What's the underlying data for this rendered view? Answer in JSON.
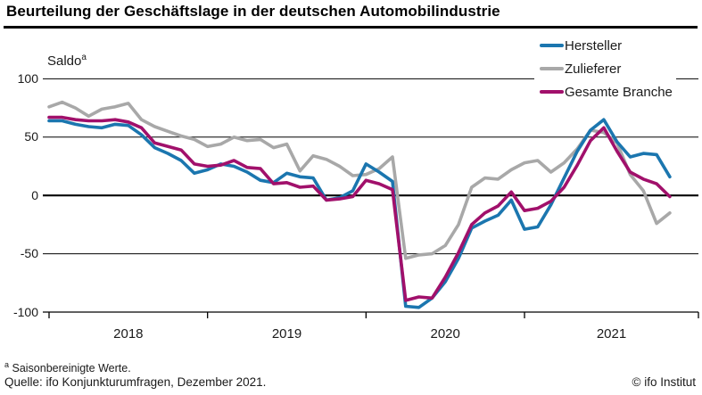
{
  "header": {
    "title": "Beurteilung der Geschäftslage in der deutschen Automobilindustrie"
  },
  "axis": {
    "saldo_label": "Saldo",
    "saldo_sup": "a"
  },
  "footnotes": {
    "note_sup": "a",
    "note_text": " Saisonbereinigte Werte.",
    "source": "Quelle: ifo Konjunkturumfragen, Dezember 2021.",
    "copyright": "© ifo Institut"
  },
  "chart_data": {
    "type": "line",
    "title": "Beurteilung der Geschäftslage in der deutschen Automobilindustrie",
    "unit": "Saldo, saisonbereinigte Werte",
    "x_range": [
      "2018-01",
      "2021-12"
    ],
    "months_per_year": 12,
    "x_tick_labels": [
      "2018",
      "2019",
      "2020",
      "2021"
    ],
    "ylim": [
      -100,
      100
    ],
    "yticks": [
      100,
      50,
      0,
      -50,
      -100
    ],
    "grid": "horizontal",
    "legend_position": "top-right",
    "zero_line": true,
    "series": [
      {
        "name": "Hersteller",
        "color": "#1b76af",
        "values": [
          64,
          64,
          61,
          59,
          58,
          61,
          60,
          52,
          41,
          36,
          30,
          19,
          22,
          27,
          25,
          20,
          13,
          11,
          19,
          16,
          15,
          -4,
          -2,
          4,
          27,
          20,
          12,
          -95,
          -96,
          -88,
          -74,
          -54,
          -28,
          -22,
          -17,
          -4,
          -29,
          -27,
          -8,
          15,
          38,
          56,
          65,
          46,
          33,
          36,
          35,
          16
        ]
      },
      {
        "name": "Zulieferer",
        "color": "#a8a8a8",
        "values": [
          76,
          80,
          75,
          68,
          74,
          76,
          79,
          65,
          59,
          55,
          51,
          48,
          42,
          44,
          50,
          47,
          48,
          41,
          44,
          21,
          34,
          31,
          25,
          17,
          18,
          23,
          33,
          -54,
          -51,
          -50,
          -43,
          -25,
          7,
          15,
          14,
          22,
          28,
          30,
          20,
          28,
          40,
          56,
          54,
          45,
          18,
          4,
          -24,
          -15
        ]
      },
      {
        "name": "Gesamte Branche",
        "color": "#a1106b",
        "values": [
          67,
          67,
          65,
          64,
          64,
          65,
          63,
          58,
          45,
          42,
          39,
          27,
          25,
          26,
          30,
          24,
          23,
          10,
          11,
          7,
          8,
          -4,
          -3,
          -1,
          13,
          10,
          5,
          -90,
          -87,
          -88,
          -70,
          -49,
          -25,
          -15,
          -9,
          3,
          -13,
          -11,
          -5,
          7,
          26,
          47,
          58,
          38,
          20,
          14,
          10,
          -1
        ]
      }
    ],
    "draw_order": [
      1,
      0,
      2
    ]
  }
}
